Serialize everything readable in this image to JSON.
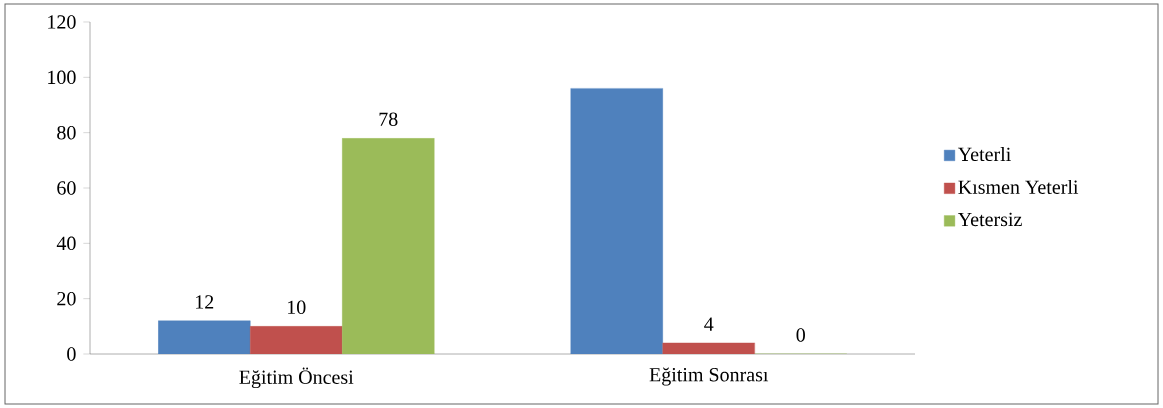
{
  "chart_data": {
    "type": "bar",
    "categories": [
      "Eğitim Öncesi",
      "Eğitim Sonrası"
    ],
    "series": [
      {
        "name": "Yeterli",
        "color": "#4f81bd",
        "values": [
          12,
          96
        ],
        "value_labels": [
          "12",
          null
        ]
      },
      {
        "name": "Kısmen Yeterli",
        "color": "#c0504d",
        "values": [
          10,
          4
        ],
        "value_labels": [
          "10",
          "4"
        ]
      },
      {
        "name": "Yetersiz",
        "color": "#9bbb59",
        "values": [
          78,
          0
        ],
        "value_labels": [
          "78",
          "0"
        ]
      }
    ],
    "ylim": [
      0,
      120
    ],
    "yticks": [
      0,
      20,
      40,
      60,
      80,
      100,
      120
    ],
    "legend": "right"
  }
}
